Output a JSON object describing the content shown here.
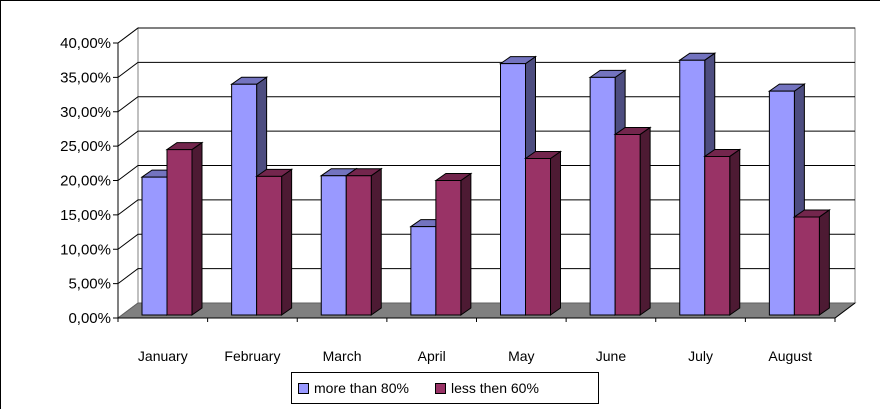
{
  "chart_data": {
    "type": "bar",
    "title": "",
    "xlabel": "",
    "ylabel": "",
    "categories": [
      "January",
      "February",
      "March",
      "April",
      "May",
      "June",
      "July",
      "August"
    ],
    "series": [
      {
        "name": "more than 80%",
        "color": "#9999ff",
        "values": [
          20.5,
          34.0,
          20.7,
          13.3,
          37.0,
          35.0,
          37.5,
          33.0
        ]
      },
      {
        "name": "less then 60%",
        "color": "#993366",
        "values": [
          24.5,
          20.6,
          20.7,
          20.0,
          23.2,
          26.7,
          23.5,
          14.7
        ]
      }
    ],
    "ylim": [
      0,
      40
    ],
    "y_ticks": [
      "0,00%",
      "5,00%",
      "10,00%",
      "15,00%",
      "20,00%",
      "25,00%",
      "30,00%",
      "35,00%",
      "40,00%"
    ],
    "y_tick_values": [
      0,
      5,
      10,
      15,
      20,
      25,
      30,
      35,
      40
    ],
    "grid": true,
    "legend_position": "bottom",
    "style": "3d-clustered-column"
  }
}
